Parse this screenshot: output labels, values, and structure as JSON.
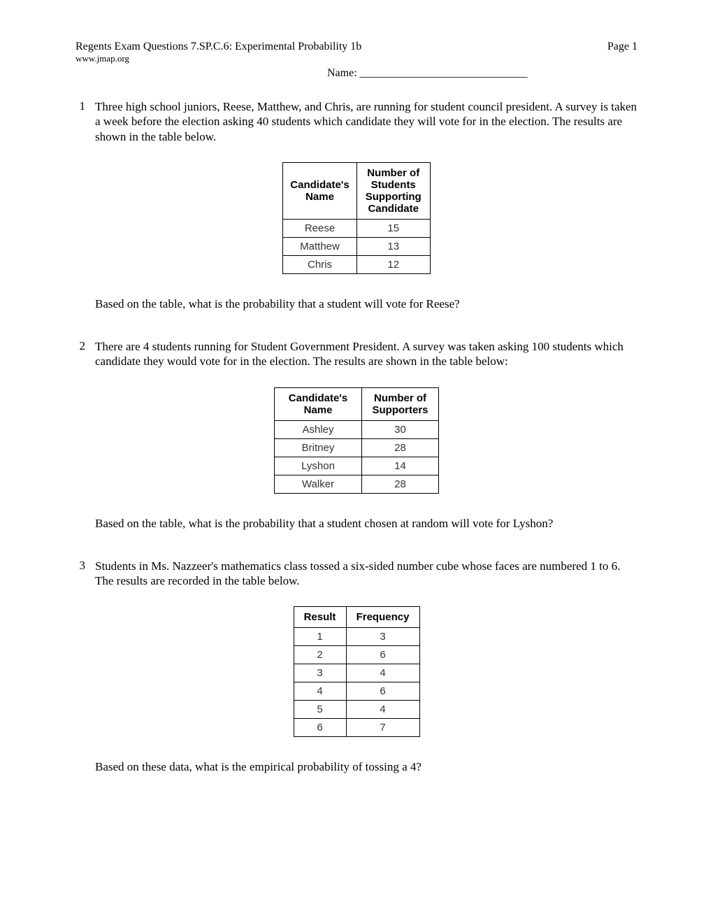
{
  "header": {
    "title": "Regents Exam Questions 7.SP.C.6: Experimental Probability 1b",
    "url": "www.jmap.org",
    "page_label": "Page 1",
    "name_label": "Name: ______________________________"
  },
  "q1": {
    "num": "1",
    "text": "Three high school juniors, Reese, Matthew, and Chris, are running for student council president.  A survey is taken a week before the election asking 40 students which candidate they will vote for in the election.  The results are shown in the table below.",
    "prompt": "Based on the table, what is the probability that a student will vote for Reese?",
    "table": {
      "header": [
        "Candidate's Name",
        "Number of Students Supporting Candidate"
      ],
      "rows": [
        [
          "Reese",
          "15"
        ],
        [
          "Matthew",
          "13"
        ],
        [
          "Chris",
          "12"
        ]
      ]
    }
  },
  "q2": {
    "num": "2",
    "text": "There are 4 students running for Student Government President.  A survey was taken asking 100 students which candidate they would vote for in the election.  The results are shown in the table below:",
    "prompt": "Based on the table, what is the probability that a student chosen at random will vote for Lyshon?",
    "table": {
      "header": [
        "Candidate's Name",
        "Number of Supporters"
      ],
      "rows": [
        [
          "Ashley",
          "30"
        ],
        [
          "Britney",
          "28"
        ],
        [
          "Lyshon",
          "14"
        ],
        [
          "Walker",
          "28"
        ]
      ]
    }
  },
  "q3": {
    "num": "3",
    "text": "Students in Ms. Nazzeer's mathematics class tossed a six-sided number cube whose faces are numbered 1 to 6.  The results are recorded in the table below.",
    "prompt": "Based on these data, what is the empirical probability of tossing a 4?",
    "table": {
      "header": [
        "Result",
        "Frequency"
      ],
      "rows": [
        [
          "1",
          "3"
        ],
        [
          "2",
          "6"
        ],
        [
          "3",
          "4"
        ],
        [
          "4",
          "6"
        ],
        [
          "5",
          "4"
        ],
        [
          "6",
          "7"
        ]
      ]
    }
  }
}
